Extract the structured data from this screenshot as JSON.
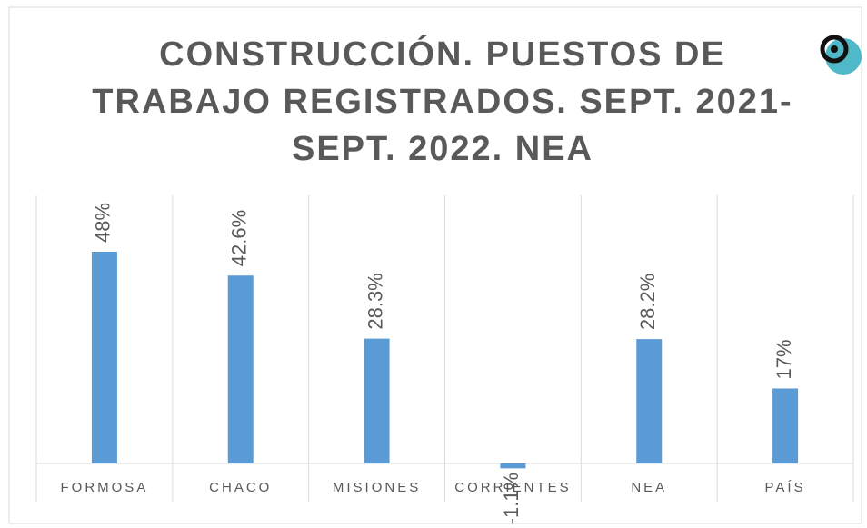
{
  "chart_data": {
    "type": "bar",
    "title": [
      "CONSTRUCCIÓN. PUESTOS DE",
      "TRABAJO REGISTRADOS. SEPT. 2021-",
      "SEPT. 2022. NEA"
    ],
    "categories": [
      "FORMOSA",
      "CHACO",
      "MISIONES",
      "CORRIENTES",
      "NEA",
      "PAÍS"
    ],
    "values": [
      48,
      42.6,
      28.3,
      -1.1,
      28.2,
      17
    ],
    "value_labels": [
      "48%",
      "42.6%",
      "28.3%",
      "-1.1%",
      "28.2%",
      "17%"
    ],
    "color": "#5b9bd5"
  }
}
